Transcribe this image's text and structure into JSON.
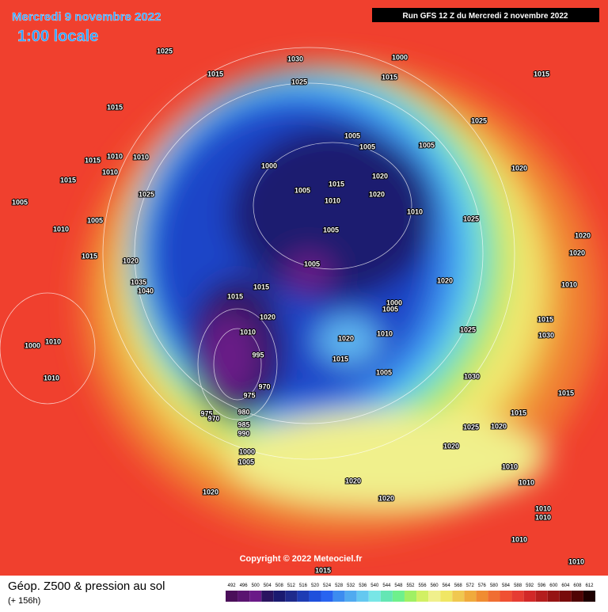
{
  "header": {
    "date": "Mercredi 9 novembre 2022",
    "time": "1:00 locale",
    "run": "Run GFS 12 Z du Mercredi 2 novembre 2022"
  },
  "copyright": "Copyright © 2022 Meteociel.fr",
  "footer": {
    "title": "Géop. Z500 & pression au sol",
    "lead": "(+ 156h)"
  },
  "scale": {
    "labels": [
      492,
      496,
      500,
      504,
      508,
      512,
      516,
      520,
      524,
      528,
      532,
      536,
      540,
      544,
      548,
      552,
      556,
      560,
      564,
      568,
      572,
      576,
      580,
      584,
      588,
      592,
      596,
      600,
      604,
      608,
      612
    ],
    "colors": [
      "#4b0f5a",
      "#5a1470",
      "#6a1a88",
      "#2a1460",
      "#1a1a70",
      "#1e2a8c",
      "#1e3cb4",
      "#1e50dc",
      "#2864f0",
      "#3c8cf0",
      "#50aaf0",
      "#64c8f0",
      "#78e6e6",
      "#64e6b4",
      "#6ef08c",
      "#a0f064",
      "#d2f064",
      "#f0f08c",
      "#f0e664",
      "#f0c850",
      "#f0aa3c",
      "#f08c32",
      "#f06e32",
      "#f05032",
      "#e63c32",
      "#d22828",
      "#b41e1e",
      "#961414",
      "#780a0a",
      "#500505",
      "#1e0000"
    ]
  },
  "isobar_labels": [
    "1025",
    "1030",
    "1000",
    "1015",
    "1015",
    "1025",
    "1015",
    "1015",
    "1025",
    "1005",
    "1005",
    "1005",
    "1015",
    "1010",
    "1010",
    "1000",
    "1020",
    "1020",
    "1015",
    "1015",
    "1010",
    "1005",
    "1020",
    "1025",
    "1005",
    "1010",
    "1010",
    "1025",
    "1005",
    "1010",
    "1005",
    "1020",
    "1020",
    "1015",
    "1005",
    "1020",
    "1035",
    "1040",
    "1020",
    "1015",
    "1010",
    "1015",
    "1000",
    "1005",
    "1020",
    "1015",
    "1025",
    "1010",
    "1020",
    "1030",
    "1010",
    "1000",
    "1010",
    "995",
    "1015",
    "1005",
    "1030",
    "1010",
    "970",
    "975",
    "1015",
    "1015",
    "975",
    "970",
    "980",
    "1025",
    "1020",
    "985",
    "990",
    "1020",
    "1000",
    "1005",
    "1010",
    "1020",
    "1010",
    "1020",
    "1020",
    "1010",
    "1010",
    "1010",
    "1015",
    "1010"
  ]
}
